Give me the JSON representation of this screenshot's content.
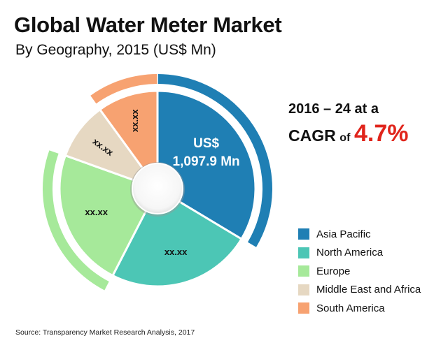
{
  "chart_data": {
    "type": "pie",
    "title": "Global Water Meter Market",
    "subtitle": "By Geography,  2015 (US$ Mn)",
    "slices": [
      {
        "name": "Asia Pacific",
        "share": 0.3361,
        "label_line1": "US$",
        "label_line2": "1,097.9 Mn",
        "color": "#1f7fb4"
      },
      {
        "name": "North America",
        "share": 0.2395,
        "label_line1": "xx.xx",
        "label_line2": "",
        "color": "#4cc6b5"
      },
      {
        "name": "Europe",
        "share": 0.2294,
        "label_line1": "xx.xx",
        "label_line2": "",
        "color": "#a6e99a"
      },
      {
        "name": "Middle East and Africa",
        "share": 0.095,
        "label_line1": "xx.xx",
        "label_line2": "",
        "color": "#e6d8c2"
      },
      {
        "name": "South America",
        "share": 0.1,
        "label_line1": "xx.xx",
        "label_line2": "",
        "color": "#f7a271"
      }
    ],
    "legend_position": "bottom-right"
  },
  "cagr": {
    "line1": "2016 – 24 at a",
    "word1": "CAGR",
    "word2": "of",
    "value": "4.7%"
  },
  "source": "Source: Transparency Market Research Analysis, 2017"
}
